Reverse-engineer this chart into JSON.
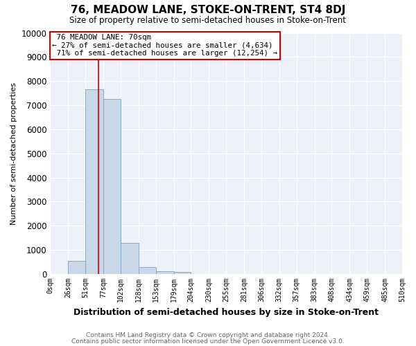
{
  "title": "76, MEADOW LANE, STOKE-ON-TRENT, ST4 8DJ",
  "subtitle": "Size of property relative to semi-detached houses in Stoke-on-Trent",
  "xlabel": "Distribution of semi-detached houses by size in Stoke-on-Trent",
  "ylabel": "Number of semi-detached properties",
  "footer1": "Contains HM Land Registry data © Crown copyright and database right 2024.",
  "footer2": "Contains public sector information licensed under the Open Government Licence v3.0.",
  "bins": [
    0,
    26,
    51,
    77,
    102,
    128,
    153,
    179,
    204,
    230,
    255,
    281,
    306,
    332,
    357,
    383,
    408,
    434,
    459,
    485,
    510
  ],
  "bin_labels": [
    "0sqm",
    "26sqm",
    "51sqm",
    "77sqm",
    "102sqm",
    "128sqm",
    "153sqm",
    "179sqm",
    "204sqm",
    "230sqm",
    "255sqm",
    "281sqm",
    "306sqm",
    "332sqm",
    "357sqm",
    "383sqm",
    "408sqm",
    "434sqm",
    "459sqm",
    "485sqm",
    "510sqm"
  ],
  "values": [
    0,
    550,
    7650,
    7250,
    1300,
    300,
    120,
    80,
    0,
    0,
    0,
    0,
    0,
    0,
    0,
    0,
    0,
    0,
    0,
    0
  ],
  "bar_color": "#c8d8e8",
  "bar_edge_color": "#88aac8",
  "property_size": 70,
  "property_label": "76 MEADOW LANE: 70sqm",
  "pct_smaller": 27,
  "pct_larger": 71,
  "n_smaller": 4634,
  "n_larger": 12254,
  "redline_color": "#cc0000",
  "annotation_box_color": "#cc0000",
  "ylim": [
    0,
    10000
  ],
  "yticks": [
    0,
    1000,
    2000,
    3000,
    4000,
    5000,
    6000,
    7000,
    8000,
    9000,
    10000
  ],
  "background_color": "#ffffff",
  "plot_bg_color": "#eef2f8"
}
